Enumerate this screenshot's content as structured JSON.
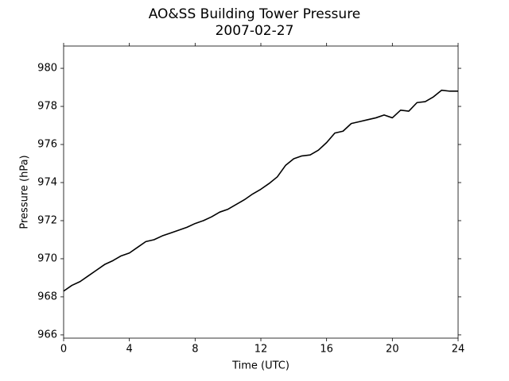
{
  "chart_data": {
    "type": "line",
    "title": "AO&SS Building Tower Pressure",
    "subtitle": "2007-02-27",
    "x_label": "Time (UTC)",
    "y_label": "Pressure (hPa)",
    "x": [
      0,
      0.5,
      1,
      1.5,
      2,
      2.5,
      3,
      3.5,
      4,
      4.5,
      5,
      5.5,
      6,
      6.5,
      7,
      7.5,
      8,
      8.5,
      9,
      9.5,
      10,
      10.5,
      11,
      11.5,
      12,
      12.5,
      13,
      13.5,
      14,
      14.5,
      15,
      15.5,
      16,
      16.5,
      17,
      17.5,
      18,
      18.5,
      19,
      19.5,
      20,
      20.5,
      21,
      21.5,
      22,
      22.5,
      23,
      23.5,
      24
    ],
    "series": [
      {
        "name": "Pressure",
        "color": "#000000",
        "values": [
          968.3,
          968.6,
          968.8,
          969.1,
          969.4,
          969.7,
          969.9,
          970.15,
          970.3,
          970.6,
          970.9,
          971.0,
          971.2,
          971.35,
          971.5,
          971.65,
          971.85,
          972.0,
          972.2,
          972.45,
          972.6,
          972.85,
          973.1,
          973.4,
          973.65,
          973.95,
          974.3,
          974.9,
          975.25,
          975.4,
          975.45,
          975.7,
          976.1,
          976.6,
          976.7,
          977.1,
          977.2,
          977.3,
          977.4,
          977.55,
          977.4,
          977.8,
          977.75,
          978.2,
          978.25,
          978.5,
          978.85,
          978.8,
          978.8
        ]
      }
    ],
    "xlim": [
      0,
      24
    ],
    "xticks": [
      0,
      4,
      8,
      12,
      16,
      20,
      24
    ],
    "ylim": [
      965.83,
      981.17
    ],
    "yticks": [
      966,
      968,
      970,
      972,
      974,
      976,
      978,
      980
    ],
    "grid": false
  }
}
